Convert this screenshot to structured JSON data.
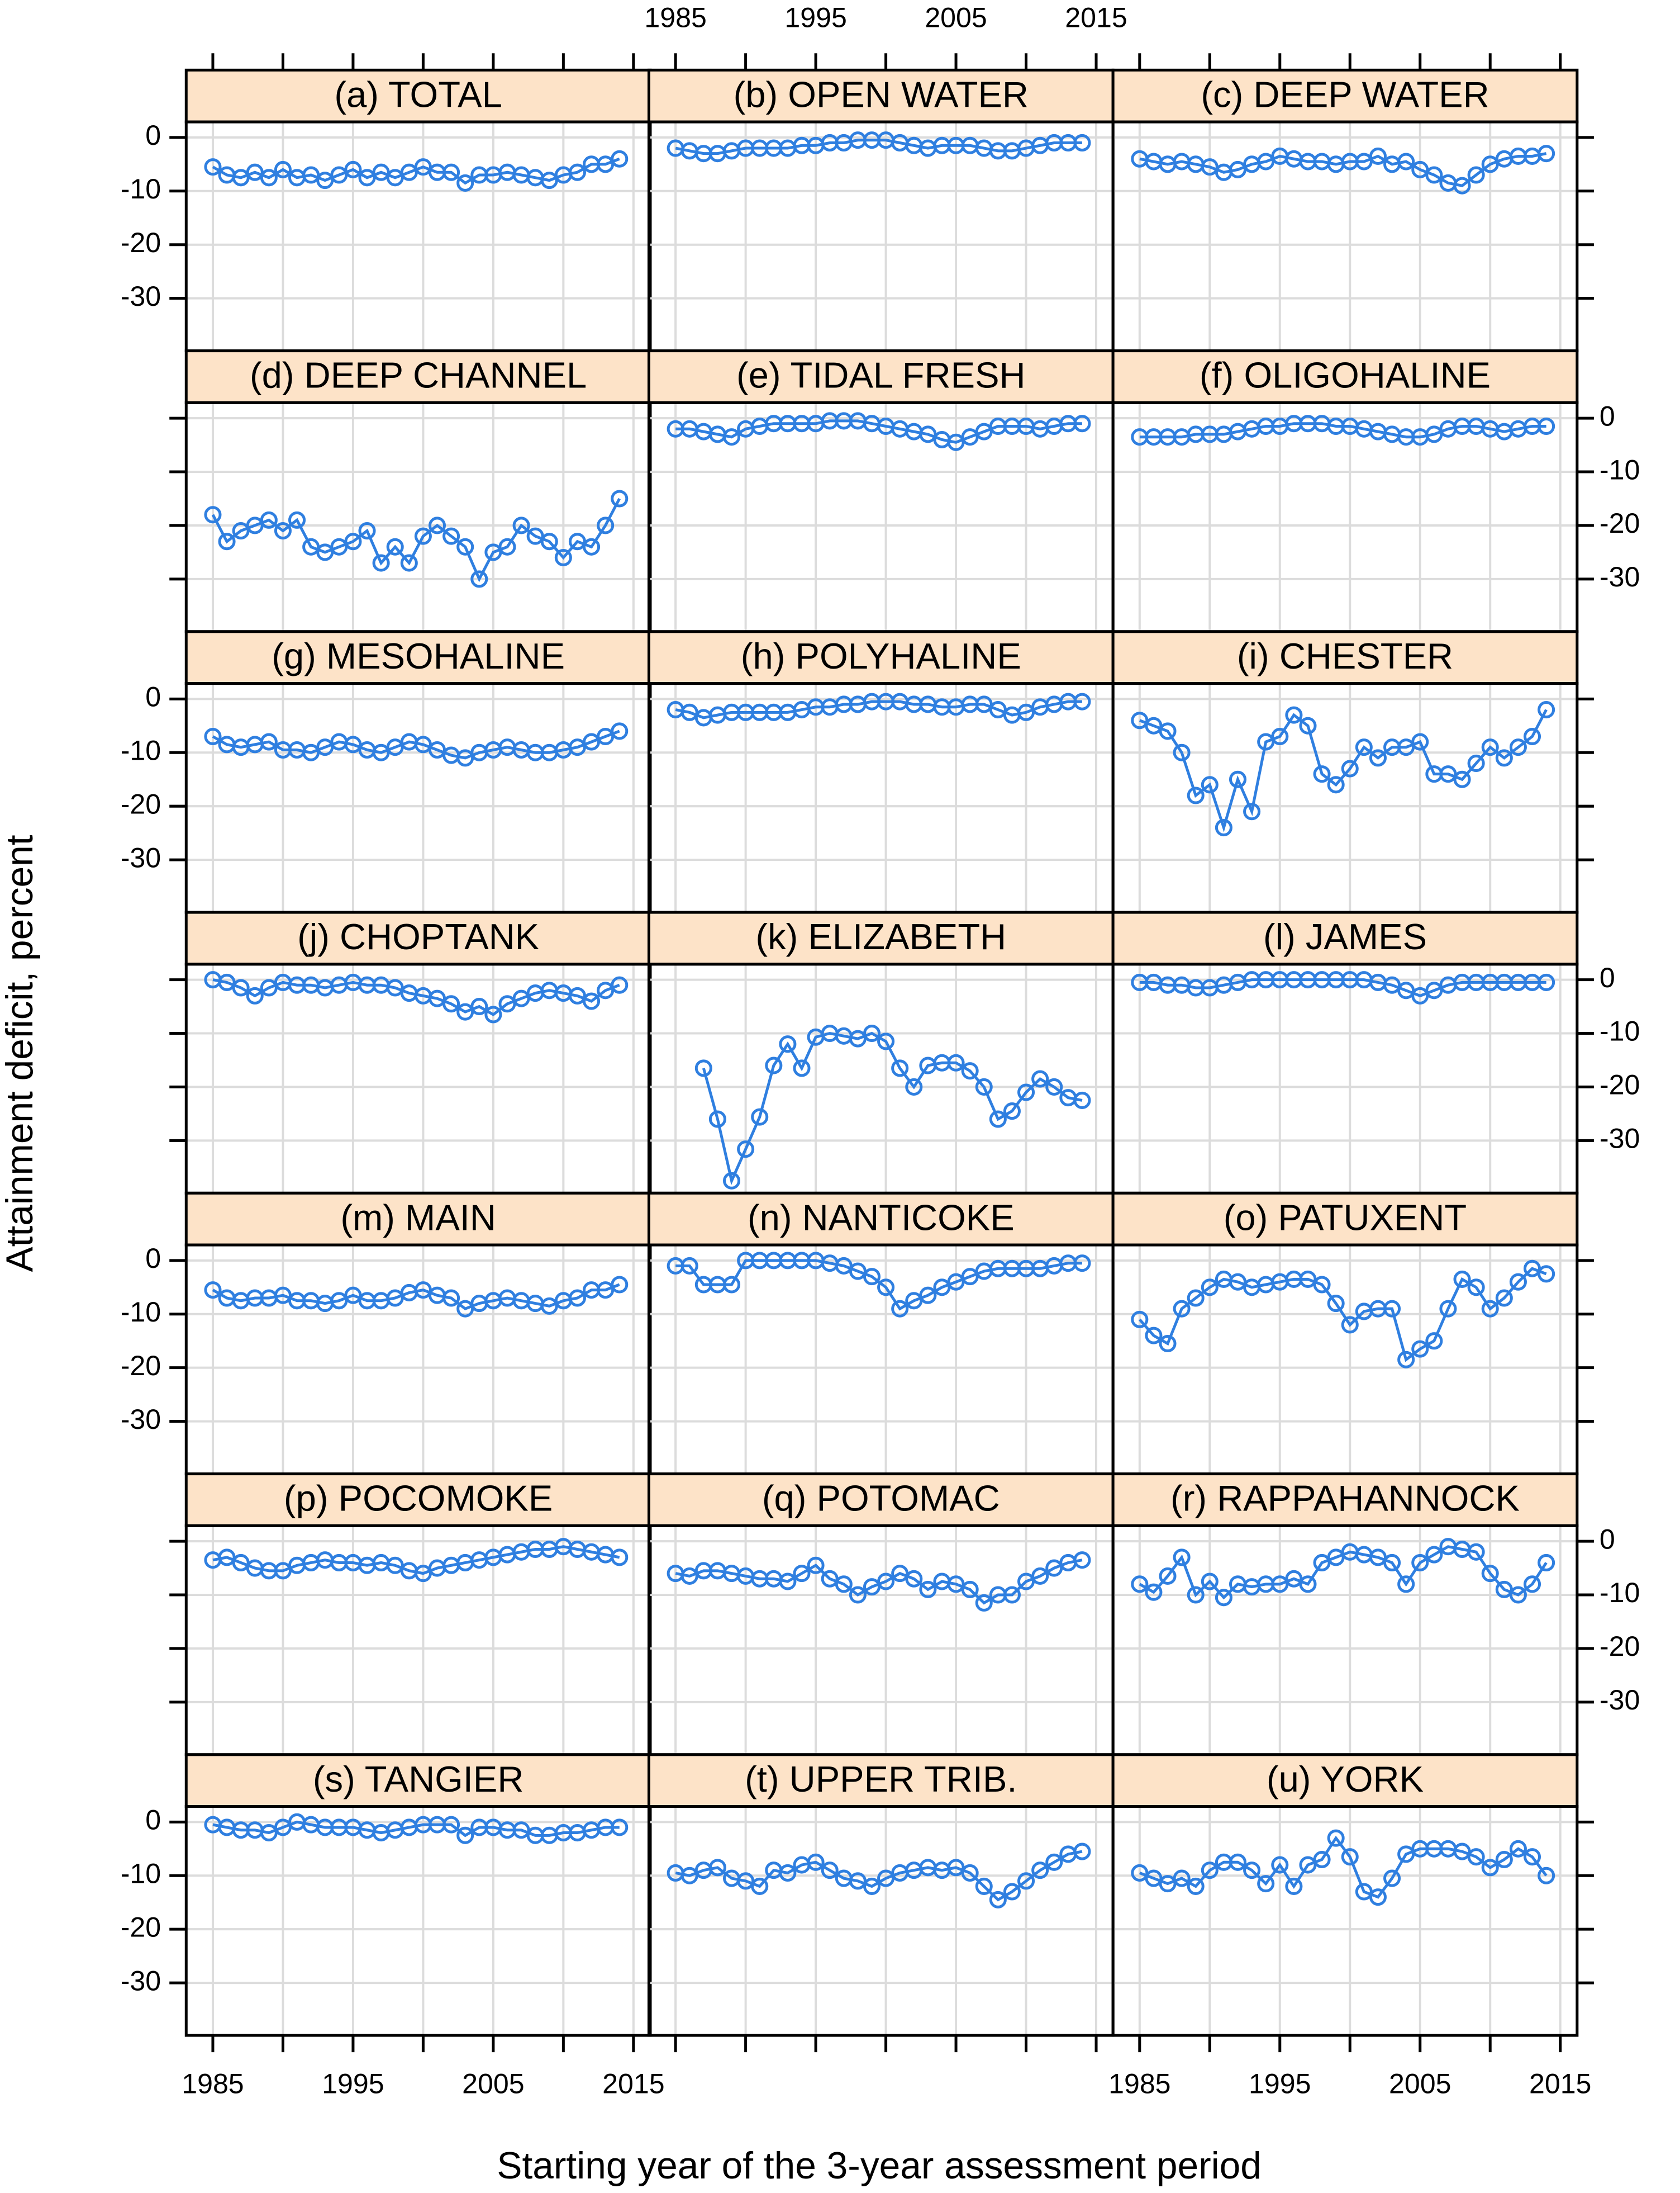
{
  "chart_data": {
    "type": "line",
    "xlabel": "Starting year of the 3-year assessment period",
    "ylabel": "Attainment deficit, percent",
    "x": [
      1985,
      1986,
      1987,
      1988,
      1989,
      1990,
      1991,
      1992,
      1993,
      1994,
      1995,
      1996,
      1997,
      1998,
      1999,
      2000,
      2001,
      2002,
      2003,
      2004,
      2005,
      2006,
      2007,
      2008,
      2009,
      2010,
      2011,
      2012,
      2013,
      2014
    ],
    "xlim": [
      1983.1,
      2016.2
    ],
    "ylim": [
      -39.8,
      2.9
    ],
    "xticks": [
      1985,
      1995,
      2005,
      2015
    ],
    "xgrid": [
      1985,
      1990,
      1995,
      2000,
      2005,
      2010,
      2015
    ],
    "yticks": [
      0,
      -10,
      -20,
      -30
    ],
    "grid": true,
    "color": "#2f7fe0",
    "strip_color": "#fde3c8",
    "panels": [
      {
        "title": "(a) TOTAL",
        "values": [
          -5.5,
          -7,
          -7.5,
          -6.5,
          -7.5,
          -6,
          -7.5,
          -7,
          -8,
          -7,
          -6,
          -7.5,
          -6.5,
          -7.5,
          -6.5,
          -5.5,
          -6.5,
          -6.5,
          -8.5,
          -7,
          -7,
          -6.5,
          -7,
          -7.5,
          -8,
          -7,
          -6.5,
          -5,
          -5,
          -4
        ]
      },
      {
        "title": "(b) OPEN WATER",
        "values": [
          -2,
          -2.5,
          -3,
          -3,
          -2.5,
          -2,
          -2,
          -2,
          -2,
          -1.5,
          -1.5,
          -1,
          -1,
          -0.5,
          -0.5,
          -0.5,
          -1,
          -1.5,
          -2,
          -1.5,
          -1.5,
          -1.5,
          -2,
          -2.5,
          -2.5,
          -2,
          -1.5,
          -1,
          -1,
          -1
        ]
      },
      {
        "title": "(c) DEEP WATER",
        "values": [
          -4,
          -4.5,
          -5,
          -4.5,
          -5,
          -5.5,
          -6.5,
          -6,
          -5,
          -4.5,
          -3.5,
          -4,
          -4.5,
          -4.5,
          -5,
          -4.5,
          -4.5,
          -3.5,
          -5,
          -4.5,
          -6,
          -7,
          -8.5,
          -9,
          -7,
          -5,
          -4,
          -3.5,
          -3.5,
          -3
        ]
      },
      {
        "title": "(d) DEEP CHANNEL",
        "values": [
          -18,
          -23,
          -21,
          -20,
          -19,
          -21,
          -19,
          -24,
          -25,
          -24,
          -23,
          -21,
          -27,
          -24,
          -27,
          -22,
          -20,
          -22,
          -24,
          -30,
          -25,
          -24,
          -20,
          -22,
          -23,
          -26,
          -23,
          -24,
          -20,
          -15
        ]
      },
      {
        "title": "(e) TIDAL FRESH",
        "values": [
          -2,
          -2,
          -2.5,
          -3,
          -3.5,
          -2,
          -1.5,
          -1,
          -1,
          -1,
          -1,
          -0.5,
          -0.5,
          -0.5,
          -1,
          -1.5,
          -2,
          -2.5,
          -3,
          -4,
          -4.5,
          -3.5,
          -2.5,
          -1.5,
          -1.5,
          -1.5,
          -2,
          -1.5,
          -1,
          -1
        ]
      },
      {
        "title": "(f) OLIGOHALINE",
        "values": [
          -3.5,
          -3.5,
          -3.5,
          -3.5,
          -3,
          -3,
          -3,
          -2.5,
          -2,
          -1.5,
          -1.5,
          -1,
          -1,
          -1,
          -1.5,
          -1.5,
          -2,
          -2.5,
          -3,
          -3.5,
          -3.5,
          -3,
          -2,
          -1.5,
          -1.5,
          -2,
          -2.5,
          -2,
          -1.5,
          -1.5
        ]
      },
      {
        "title": "(g) MESOHALINE",
        "values": [
          -7,
          -8.5,
          -9,
          -8.5,
          -8,
          -9.5,
          -9.5,
          -10,
          -9,
          -8,
          -8.5,
          -9.5,
          -10,
          -9,
          -8,
          -8.5,
          -9.5,
          -10.5,
          -11,
          -10,
          -9.5,
          -9,
          -9.5,
          -10,
          -10,
          -9.5,
          -9,
          -8,
          -7,
          -6
        ]
      },
      {
        "title": "(h) POLYHALINE",
        "values": [
          -2,
          -2.5,
          -3.5,
          -3,
          -2.5,
          -2.5,
          -2.5,
          -2.5,
          -2.5,
          -2,
          -1.5,
          -1.5,
          -1,
          -1,
          -0.5,
          -0.5,
          -0.5,
          -1,
          -1,
          -1.5,
          -1.5,
          -1,
          -1,
          -2,
          -3,
          -2.5,
          -1.5,
          -1,
          -0.5,
          -0.5
        ]
      },
      {
        "title": "(i) CHESTER",
        "values": [
          -4,
          -5,
          -6,
          -10,
          -18,
          -16,
          -24,
          -15,
          -21,
          -8,
          -7,
          -3,
          -5,
          -14,
          -16,
          -13,
          -9,
          -11,
          -9,
          -9,
          -8,
          -14,
          -14,
          -15,
          -12,
          -9,
          -11,
          -9,
          -7,
          -2
        ]
      },
      {
        "title": "(j) CHOPTANK",
        "values": [
          0,
          -0.5,
          -1.5,
          -3,
          -1.5,
          -0.5,
          -1,
          -1,
          -1.5,
          -1,
          -0.5,
          -1,
          -1,
          -1.5,
          -2.5,
          -3,
          -3.5,
          -4.5,
          -6,
          -5,
          -6.5,
          -4.5,
          -3.5,
          -2.5,
          -2,
          -2.5,
          -3,
          -4,
          -2,
          -1
        ]
      },
      {
        "title": "(k) ELIZABETH",
        "values": [
          null,
          null,
          -16.5,
          -26,
          -37.5,
          -31.6,
          -25.6,
          -16,
          -12,
          -16.5,
          -10.7,
          -10,
          -10.5,
          -11,
          -10,
          -11.5,
          -16.5,
          -20,
          -16,
          -15.5,
          -15.5,
          -17,
          -20,
          -26,
          -24.5,
          -21,
          -18.5,
          -20,
          -22,
          -22.5
        ]
      },
      {
        "title": "(l) JAMES",
        "values": [
          -0.5,
          -0.5,
          -1,
          -1,
          -1.5,
          -1.5,
          -1,
          -0.5,
          0,
          0,
          0,
          0,
          0,
          0,
          0,
          0,
          0,
          -0.5,
          -1,
          -2,
          -3,
          -2,
          -1,
          -0.5,
          -0.5,
          -0.5,
          -0.5,
          -0.5,
          -0.5,
          -0.5
        ]
      },
      {
        "title": "(m) MAIN",
        "values": [
          -5.5,
          -7,
          -7.5,
          -7,
          -7,
          -6.5,
          -7.5,
          -7.5,
          -8,
          -7.5,
          -6.5,
          -7.5,
          -7.5,
          -7,
          -6,
          -5.5,
          -6.5,
          -7,
          -9,
          -8,
          -7.5,
          -7,
          -7.5,
          -8,
          -8.5,
          -7.5,
          -7,
          -5.5,
          -5.5,
          -4.5
        ]
      },
      {
        "title": "(n) NANTICOKE",
        "values": [
          -1,
          -1,
          -4.5,
          -4.5,
          -4.5,
          0,
          0,
          0,
          0,
          0,
          0,
          -0.5,
          -1,
          -2,
          -3,
          -5,
          -9,
          -7.5,
          -6.5,
          -5,
          -4,
          -3,
          -2,
          -1.5,
          -1.5,
          -1.5,
          -1.5,
          -1,
          -0.5,
          -0.5
        ]
      },
      {
        "title": "(o) PATUXENT",
        "values": [
          -11,
          -14,
          -15.5,
          -9,
          -7,
          -5,
          -3.5,
          -4,
          -5,
          -4.5,
          -4,
          -3.5,
          -3.5,
          -4.5,
          -8,
          -12,
          -9.5,
          -9,
          -9,
          -18.5,
          -16.5,
          -15,
          -9,
          -3.5,
          -5,
          -9,
          -7,
          -4,
          -1.5,
          -2.5
        ]
      },
      {
        "title": "(p) POCOMOKE",
        "values": [
          -3.5,
          -3,
          -4,
          -5,
          -5.5,
          -5.5,
          -4.5,
          -4,
          -3.5,
          -4,
          -4,
          -4.5,
          -4,
          -4.5,
          -5.5,
          -6,
          -5,
          -4.5,
          -4,
          -3.5,
          -3,
          -2.5,
          -2,
          -1.5,
          -1.5,
          -1,
          -1.5,
          -2,
          -2.5,
          -3
        ]
      },
      {
        "title": "(q) POTOMAC",
        "values": [
          -6,
          -6.5,
          -5.5,
          -5.5,
          -6,
          -6.5,
          -7,
          -7,
          -7.5,
          -6,
          -4.5,
          -7,
          -8,
          -10,
          -8.5,
          -7.5,
          -6,
          -7,
          -9,
          -7.5,
          -8,
          -9,
          -11.5,
          -10,
          -10,
          -7.5,
          -6.5,
          -5,
          -4,
          -3.5
        ]
      },
      {
        "title": "(r) RAPPAHANNOCK",
        "values": [
          -8,
          -9.5,
          -6.5,
          -3,
          -10,
          -7.5,
          -10.5,
          -8,
          -8.5,
          -8,
          -8,
          -7,
          -8,
          -4,
          -3,
          -2,
          -2.5,
          -3,
          -4,
          -8,
          -4,
          -2.5,
          -1,
          -1.5,
          -2,
          -6,
          -9,
          -10,
          -8,
          -4
        ]
      },
      {
        "title": "(s) TANGIER",
        "values": [
          -0.5,
          -1,
          -1.5,
          -1.5,
          -2,
          -1,
          0,
          -0.5,
          -1,
          -1,
          -1,
          -1.5,
          -2,
          -1.5,
          -1,
          -0.5,
          -0.5,
          -0.5,
          -2.5,
          -1,
          -1,
          -1.5,
          -1.5,
          -2.5,
          -2.5,
          -2,
          -2,
          -1.5,
          -1,
          -1
        ]
      },
      {
        "title": "(t) UPPER TRIB.",
        "values": [
          -9.5,
          -10,
          -9,
          -8.5,
          -10.5,
          -11,
          -12,
          -9,
          -9.5,
          -8,
          -7.5,
          -9,
          -10.5,
          -11,
          -12,
          -10.5,
          -9.5,
          -9,
          -8.5,
          -9,
          -8.5,
          -9.5,
          -12,
          -14.5,
          -13,
          -11,
          -9,
          -7.5,
          -6,
          -5.5
        ]
      },
      {
        "title": "(u) YORK",
        "values": [
          -9.5,
          -10.5,
          -11.5,
          -10.5,
          -12,
          -9,
          -7.5,
          -7.5,
          -9,
          -11.5,
          -8,
          -12,
          -8,
          -7,
          -3,
          -6.5,
          -13,
          -14,
          -10.5,
          -6,
          -5,
          -5,
          -5,
          -5.5,
          -6.5,
          -8.5,
          -7,
          -5,
          -6.5,
          -10
        ]
      }
    ]
  }
}
